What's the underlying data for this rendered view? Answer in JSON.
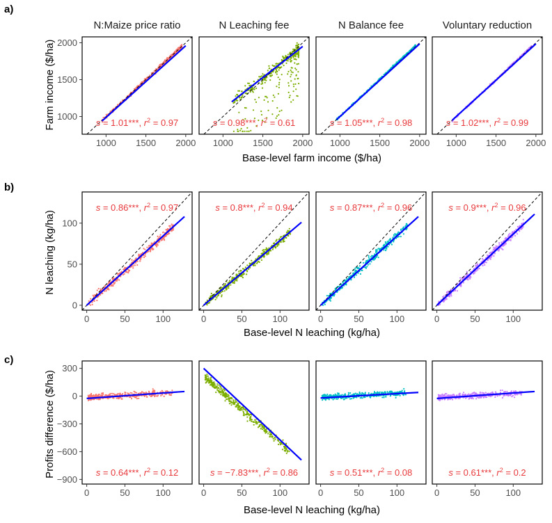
{
  "figure": {
    "row_labels": [
      "a)",
      "b)",
      "c)"
    ],
    "facet_titles": [
      "N:Maize price ratio",
      "N Leaching fee",
      "N Balance fee",
      "Voluntary reduction"
    ],
    "point_colors": [
      "#f8766d",
      "#7cae00",
      "#00bfc4",
      "#c77cff"
    ],
    "fit_line_color": "#0000ff",
    "annotation_color": "#e8383b",
    "identity_line": "dashed black 1:1 line (rows a and b)"
  },
  "chart_data": [
    {
      "type": "scatter",
      "row": "a)",
      "xlabel": "Base-level farm income ($/ha)",
      "ylabel": "Farm income ($/ha)",
      "xlim": [
        700,
        2080
      ],
      "ylim": [
        760,
        2080
      ],
      "xticks": [
        1000,
        1500,
        2000
      ],
      "yticks": [
        1000,
        1500,
        2000
      ],
      "identity_line": true,
      "stat_position": "bottom",
      "panels": [
        {
          "title": "N:Maize price ratio",
          "s": "1.01",
          "r2": "0.97",
          "fit": [
            [
              950,
              940
            ],
            [
              2000,
              1960
            ]
          ]
        },
        {
          "title": "N Leaching fee",
          "s": "0.98",
          "r2": "0.61",
          "fit": [
            [
              1110,
              1200
            ],
            [
              2000,
              1950
            ]
          ]
        },
        {
          "title": "N Balance fee",
          "s": "1.05",
          "r2": "0.98",
          "fit": [
            [
              960,
              960
            ],
            [
              2000,
              1985
            ]
          ]
        },
        {
          "title": "Voluntary reduction",
          "s": "1.02",
          "r2": "0.99",
          "fit": [
            [
              950,
              950
            ],
            [
              2000,
              1985
            ]
          ]
        }
      ],
      "grid": false
    },
    {
      "type": "scatter",
      "row": "b)",
      "xlabel": "Base-level N leaching (kg/ha)",
      "ylabel": "N leaching (kg/ha)",
      "xlim": [
        -6,
        138
      ],
      "ylim": [
        -6,
        138
      ],
      "xticks": [
        0,
        50,
        100
      ],
      "yticks": [
        0,
        50,
        100
      ],
      "identity_line": true,
      "stat_position": "top",
      "panels": [
        {
          "title": "N:Maize price ratio",
          "s": "0.86",
          "r2": "0.97",
          "fit": [
            [
              0,
              0
            ],
            [
              128,
              108
            ]
          ]
        },
        {
          "title": "N Leaching fee",
          "s": "0.8",
          "r2": "0.94",
          "fit": [
            [
              0,
              0
            ],
            [
              128,
              101
            ]
          ]
        },
        {
          "title": "N Balance fee",
          "s": "0.87",
          "r2": "0.96",
          "fit": [
            [
              0,
              0
            ],
            [
              128,
              108
            ]
          ]
        },
        {
          "title": "Voluntary reduction",
          "s": "0.9",
          "r2": "0.96",
          "fit": [
            [
              0,
              0
            ],
            [
              128,
              111
            ]
          ]
        }
      ],
      "grid": false
    },
    {
      "type": "scatter",
      "row": "c)",
      "xlabel": "Base-level N leaching (kg/ha)",
      "ylabel": "Profits difference ($/ha)",
      "xlim": [
        -6,
        138
      ],
      "ylim": [
        -950,
        380
      ],
      "xticks": [
        0,
        50,
        100
      ],
      "yticks": [
        300,
        0,
        -300,
        -600,
        -900
      ],
      "identity_line": false,
      "stat_position": "bottom",
      "panels": [
        {
          "title": "N:Maize price ratio",
          "s": "0.64",
          "r2": "0.12",
          "fit": [
            [
              0,
              -25
            ],
            [
              128,
              50
            ]
          ]
        },
        {
          "title": "N Leaching fee",
          "s": "−7.83",
          "r2": "0.86",
          "fit": [
            [
              0,
              300
            ],
            [
              128,
              -690
            ]
          ]
        },
        {
          "title": "N Balance fee",
          "s": "0.51",
          "r2": "0.08",
          "fit": [
            [
              0,
              -20
            ],
            [
              128,
              40
            ]
          ]
        },
        {
          "title": "Voluntary reduction",
          "s": "0.61",
          "r2": "0.2",
          "fit": [
            [
              0,
              -25
            ],
            [
              128,
              50
            ]
          ]
        }
      ],
      "grid": false
    }
  ]
}
